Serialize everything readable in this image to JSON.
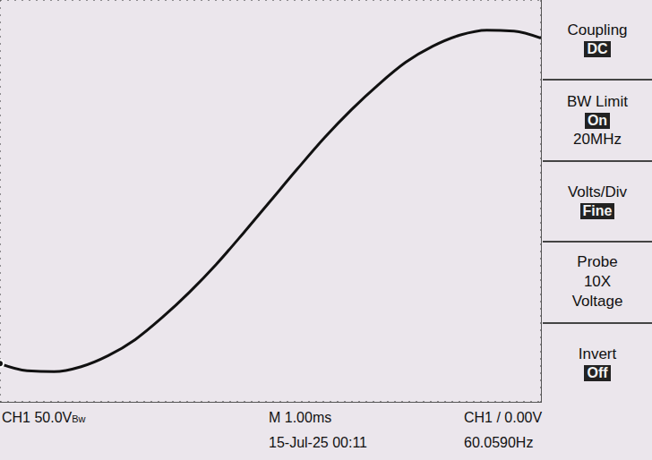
{
  "chart_data": {
    "type": "line",
    "x": [
      -5,
      -4.5,
      -4,
      -3.5,
      -3,
      -2.5,
      -2,
      -1.5,
      -1,
      -0.5,
      0,
      0.5,
      1,
      1.5,
      2,
      2.5,
      3,
      3.5,
      4,
      4.5,
      5
    ],
    "values": [
      -162,
      -169,
      -170,
      -165,
      -154,
      -138,
      -116,
      -91,
      -63,
      -32,
      0,
      32,
      63,
      91,
      116,
      138,
      154,
      165,
      170,
      169,
      162
    ],
    "color": "#111111",
    "xlim": [
      -5,
      5
    ],
    "xticks": [
      -5,
      -4,
      -3,
      -2,
      -1,
      0,
      1,
      2,
      3,
      4,
      5
    ],
    "ylim": [
      -200,
      200
    ],
    "yticks": [
      -200,
      -150,
      -100,
      -50,
      0,
      50,
      100,
      150,
      200
    ],
    "grid": true,
    "tick_labels": false
  },
  "menu": [
    {
      "title": "Coupling",
      "setting": "DC"
    },
    {
      "title": "BW Limit",
      "setting": "On",
      "lines": [
        "20MHz"
      ]
    },
    {
      "title": "Volts/Div",
      "setting": "Fine"
    },
    {
      "title": "Probe",
      "lines": [
        "10X",
        "Voltage"
      ]
    },
    {
      "title": "Invert",
      "setting": "Off"
    }
  ],
  "status": {
    "channel": "CH1 50.0V",
    "bw_mark": "Bw",
    "timebase": "M 1.00ms",
    "trigger": "CH1 / 0.00V",
    "date": "15-Jul-25 00:11",
    "frequency": "60.0590Hz"
  }
}
